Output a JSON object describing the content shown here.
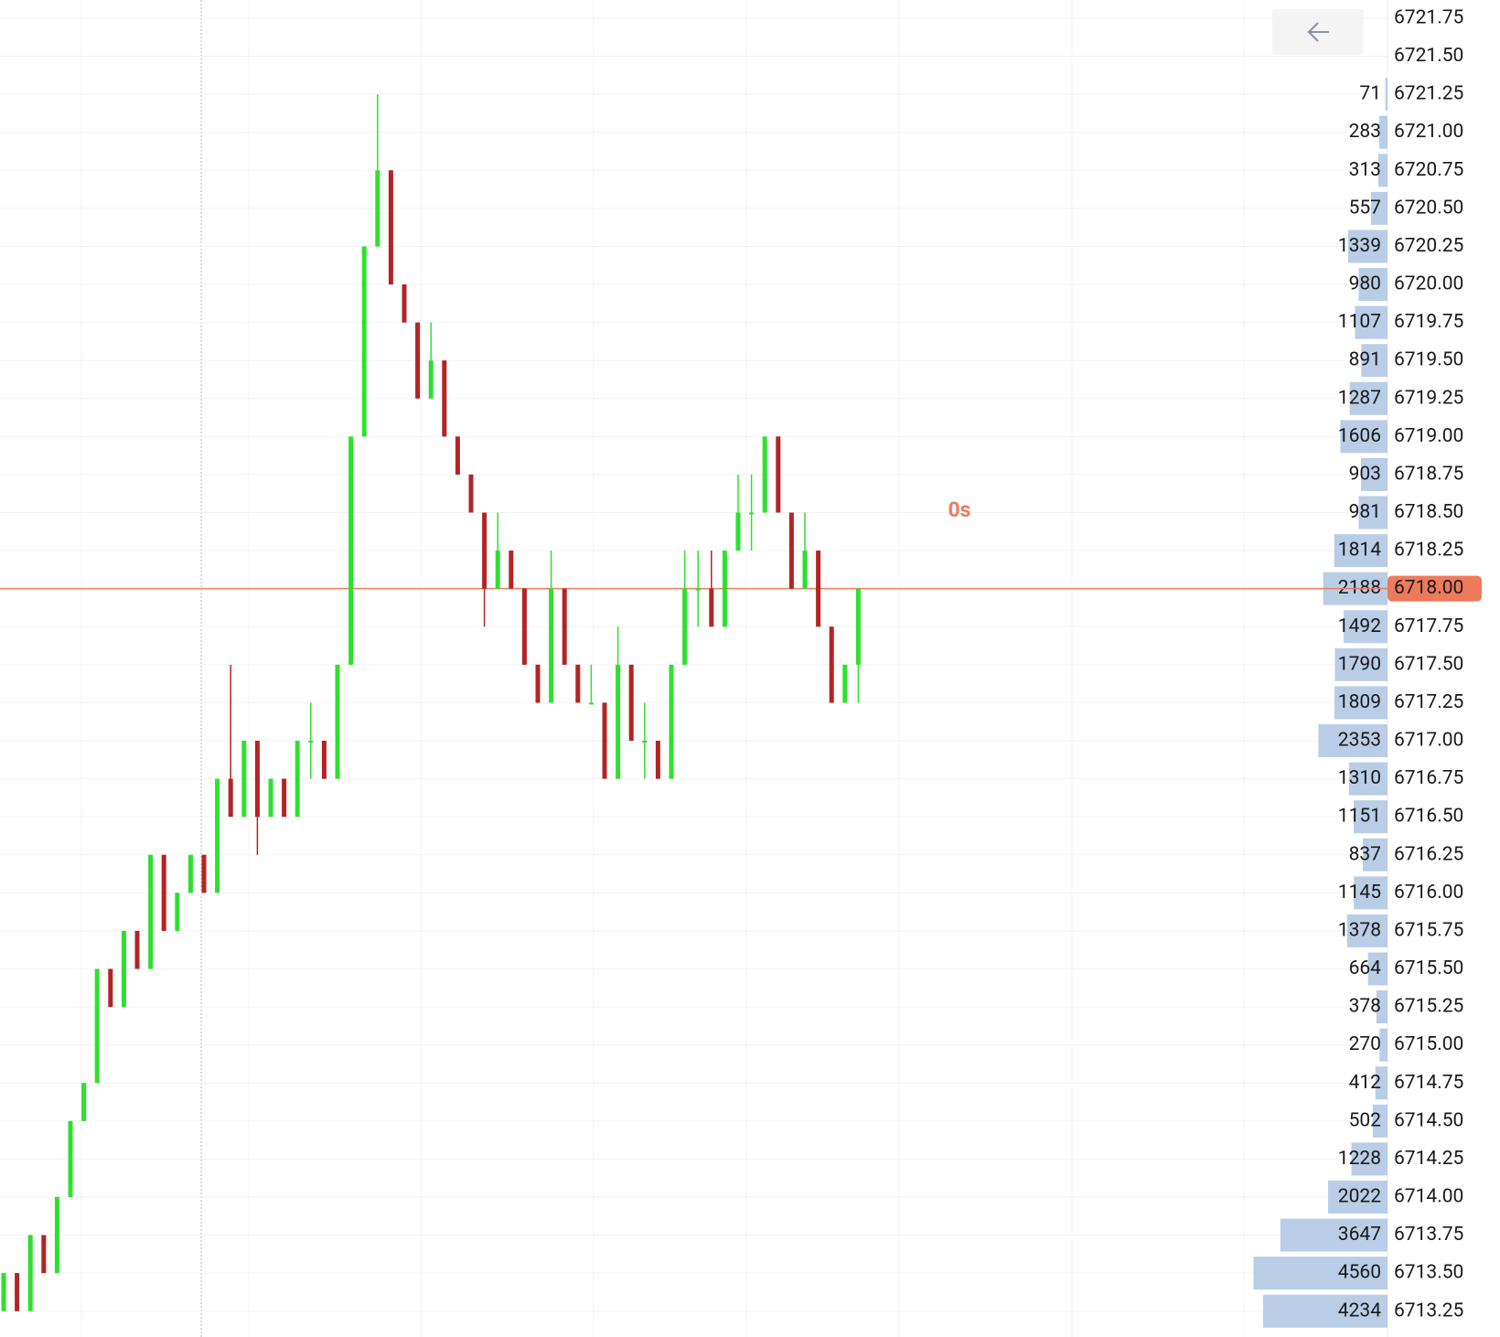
{
  "chart_data": {
    "type": "candlestick",
    "annotation": "0s",
    "ylim": [
      6713.08,
      6721.87
    ],
    "last_price": 6718.0,
    "last_price_color": "#ee7a5c",
    "up_color": "#2ee02e",
    "down_color": "#b32424",
    "grid": true,
    "yticks": [
      {
        "value": 6721.75,
        "label": "6721.75"
      },
      {
        "value": 6721.5,
        "label": "6721.50"
      },
      {
        "value": 6721.25,
        "label": "6721.25"
      },
      {
        "value": 6721.0,
        "label": "6721.00"
      },
      {
        "value": 6720.75,
        "label": "6720.75"
      },
      {
        "value": 6720.5,
        "label": "6720.50"
      },
      {
        "value": 6720.25,
        "label": "6720.25"
      },
      {
        "value": 6720.0,
        "label": "6720.00"
      },
      {
        "value": 6719.75,
        "label": "6719.75"
      },
      {
        "value": 6719.5,
        "label": "6719.50"
      },
      {
        "value": 6719.25,
        "label": "6719.25"
      },
      {
        "value": 6719.0,
        "label": "6719.00"
      },
      {
        "value": 6718.75,
        "label": "6718.75"
      },
      {
        "value": 6718.5,
        "label": "6718.50"
      },
      {
        "value": 6718.25,
        "label": "6718.25"
      },
      {
        "value": 6718.0,
        "label": "6718.00"
      },
      {
        "value": 6717.75,
        "label": "6717.75"
      },
      {
        "value": 6717.5,
        "label": "6717.50"
      },
      {
        "value": 6717.25,
        "label": "6717.25"
      },
      {
        "value": 6717.0,
        "label": "6717.00"
      },
      {
        "value": 6716.75,
        "label": "6716.75"
      },
      {
        "value": 6716.5,
        "label": "6716.50"
      },
      {
        "value": 6716.25,
        "label": "6716.25"
      },
      {
        "value": 6716.0,
        "label": "6716.00"
      },
      {
        "value": 6715.75,
        "label": "6715.75"
      },
      {
        "value": 6715.5,
        "label": "6715.50"
      },
      {
        "value": 6715.25,
        "label": "6715.25"
      },
      {
        "value": 6715.0,
        "label": "6715.00"
      },
      {
        "value": 6714.75,
        "label": "6714.75"
      },
      {
        "value": 6714.5,
        "label": "6714.50"
      },
      {
        "value": 6714.25,
        "label": "6714.25"
      },
      {
        "value": 6714.0,
        "label": "6714.00"
      },
      {
        "value": 6713.75,
        "label": "6713.75"
      },
      {
        "value": 6713.5,
        "label": "6713.50"
      },
      {
        "value": 6713.25,
        "label": "6713.25"
      }
    ],
    "open": [
      6713.25,
      6713.5,
      6713.25,
      6713.75,
      6713.5,
      6714.0,
      6714.5,
      6714.75,
      6715.5,
      6715.25,
      6715.75,
      6715.5,
      6716.25,
      6715.75,
      6716.0,
      6716.25,
      6716.0,
      6716.75,
      6716.5,
      6717.0,
      6716.5,
      6716.75,
      6716.5,
      6717.0,
      6717.0,
      6716.75,
      6717.5,
      6719.0,
      6720.25,
      6720.75,
      6720.0,
      6719.75,
      6719.25,
      6719.5,
      6719.0,
      6718.75,
      6718.5,
      6718.0,
      6718.25,
      6718.0,
      6717.5,
      6717.25,
      6718.0,
      6717.5,
      6717.25,
      6717.25,
      6716.75,
      6717.5,
      6717.0,
      6717.0,
      6716.75,
      6717.5,
      6718.0,
      6718.0,
      6717.75,
      6718.25,
      6718.5,
      6718.5,
      6719.0,
      6718.5,
      6718.0,
      6718.25,
      6717.75,
      6717.25,
      6717.5
    ],
    "high": [
      6713.5,
      6713.5,
      6713.75,
      6713.75,
      6714.0,
      6714.5,
      6714.75,
      6715.5,
      6715.5,
      6715.75,
      6715.75,
      6716.25,
      6716.25,
      6716.0,
      6716.25,
      6716.25,
      6716.75,
      6717.5,
      6717.0,
      6717.0,
      6716.75,
      6716.75,
      6717.0,
      6717.25,
      6717.0,
      6717.5,
      6719.0,
      6720.25,
      6721.25,
      6720.75,
      6720.0,
      6719.75,
      6719.75,
      6719.5,
      6719.0,
      6718.75,
      6718.5,
      6718.5,
      6718.25,
      6718.0,
      6717.5,
      6718.25,
      6718.0,
      6717.5,
      6717.5,
      6717.25,
      6717.75,
      6717.5,
      6717.25,
      6717.0,
      6717.5,
      6718.25,
      6718.25,
      6718.25,
      6718.25,
      6718.75,
      6718.75,
      6719.0,
      6719.0,
      6718.5,
      6718.5,
      6718.25,
      6717.75,
      6717.5,
      6718.0
    ],
    "low": [
      6713.25,
      6713.25,
      6713.25,
      6713.5,
      6713.5,
      6714.0,
      6714.5,
      6714.75,
      6715.25,
      6715.25,
      6715.5,
      6715.5,
      6715.75,
      6715.75,
      6716.0,
      6716.0,
      6716.0,
      6716.5,
      6716.5,
      6716.25,
      6716.5,
      6716.5,
      6716.5,
      6716.75,
      6716.75,
      6716.75,
      6717.5,
      6719.0,
      6720.25,
      6720.0,
      6719.75,
      6719.25,
      6719.25,
      6719.0,
      6718.75,
      6718.5,
      6717.75,
      6718.0,
      6718.0,
      6717.5,
      6717.25,
      6717.25,
      6717.5,
      6717.25,
      6717.25,
      6716.75,
      6716.75,
      6717.0,
      6716.75,
      6716.75,
      6716.75,
      6717.5,
      6717.75,
      6717.75,
      6717.75,
      6718.25,
      6718.25,
      6718.5,
      6718.5,
      6718.0,
      6718.0,
      6717.75,
      6717.25,
      6717.25,
      6717.25
    ],
    "close": [
      6713.5,
      6713.25,
      6713.75,
      6713.5,
      6714.0,
      6714.5,
      6714.75,
      6715.5,
      6715.25,
      6715.75,
      6715.5,
      6716.25,
      6715.75,
      6716.0,
      6716.25,
      6716.0,
      6716.75,
      6716.5,
      6717.0,
      6716.5,
      6716.75,
      6716.5,
      6717.0,
      6717.0,
      6716.75,
      6717.5,
      6719.0,
      6720.25,
      6720.75,
      6720.0,
      6719.75,
      6719.25,
      6719.5,
      6719.0,
      6718.75,
      6718.5,
      6718.0,
      6718.25,
      6718.0,
      6717.5,
      6717.25,
      6718.0,
      6717.5,
      6717.25,
      6717.25,
      6716.75,
      6717.5,
      6717.0,
      6717.0,
      6716.75,
      6717.5,
      6718.0,
      6718.0,
      6717.75,
      6718.25,
      6718.5,
      6718.5,
      6719.0,
      6718.5,
      6718.0,
      6718.25,
      6717.75,
      6717.25,
      6717.5,
      6718.0
    ],
    "volume_profile": {
      "color": "#b9cde6",
      "xlim": [
        0,
        4700
      ],
      "prices": [
        6721.25,
        6721.0,
        6720.75,
        6720.5,
        6720.25,
        6720.0,
        6719.75,
        6719.5,
        6719.25,
        6719.0,
        6718.75,
        6718.5,
        6718.25,
        6718.0,
        6717.75,
        6717.5,
        6717.25,
        6717.0,
        6716.75,
        6716.5,
        6716.25,
        6716.0,
        6715.75,
        6715.5,
        6715.25,
        6715.0,
        6714.75,
        6714.5,
        6714.25,
        6714.0,
        6713.75,
        6713.5,
        6713.25
      ],
      "values": [
        71,
        283,
        313,
        557,
        1339,
        980,
        1107,
        891,
        1287,
        1606,
        903,
        981,
        1814,
        2188,
        1492,
        1790,
        1809,
        2353,
        1310,
        1151,
        837,
        1145,
        1378,
        664,
        378,
        270,
        412,
        502,
        1228,
        2022,
        3647,
        4560,
        4234
      ]
    }
  }
}
